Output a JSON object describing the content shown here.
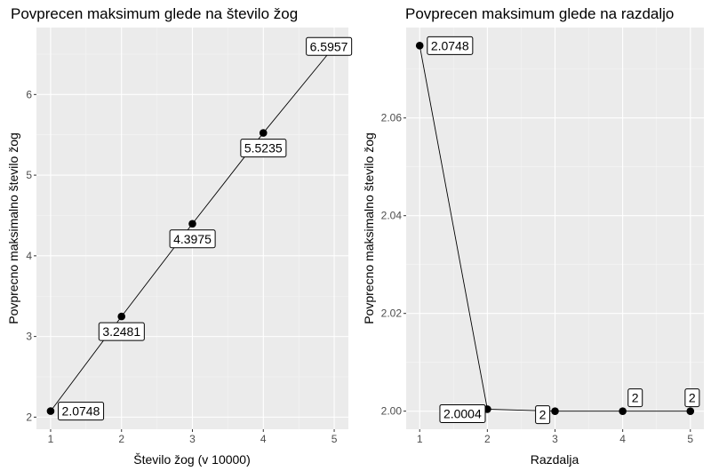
{
  "chart_data": [
    {
      "type": "line",
      "title": "Povprecen maksimum glede na število žog",
      "xlabel": "Število žog (v 10000)",
      "ylabel": "Povprecno maksimalno število žog",
      "x": [
        1,
        2,
        3,
        4,
        5
      ],
      "values": [
        2.0748,
        3.2481,
        4.3975,
        5.5235,
        6.5957
      ],
      "labels": [
        "2.0748",
        "3.2481",
        "4.3975",
        "5.5235",
        "6.5957"
      ],
      "xticks": [
        "1",
        "2",
        "3",
        "4",
        "5"
      ],
      "yticks": [
        "2",
        "3",
        "4",
        "5",
        "6"
      ],
      "xlim": [
        0.8,
        5.2
      ],
      "ylim": [
        1.85,
        6.83
      ],
      "grid": true
    },
    {
      "type": "line",
      "title": "Povprecen maksimum glede na razdaljo",
      "xlabel": "Razdalja",
      "ylabel": "Povprecno maksimalno število žog",
      "x": [
        1,
        2,
        3,
        4,
        5
      ],
      "values": [
        2.0748,
        2.0004,
        2,
        2,
        2
      ],
      "labels": [
        "2.0748",
        "2.0004",
        "2",
        "2",
        "2"
      ],
      "xticks": [
        "1",
        "2",
        "3",
        "4",
        "5"
      ],
      "yticks": [
        "2.00",
        "2.02",
        "2.04",
        "2.06"
      ],
      "xlim": [
        0.8,
        5.2
      ],
      "ylim": [
        1.9963,
        2.0785
      ],
      "grid": true
    }
  ]
}
